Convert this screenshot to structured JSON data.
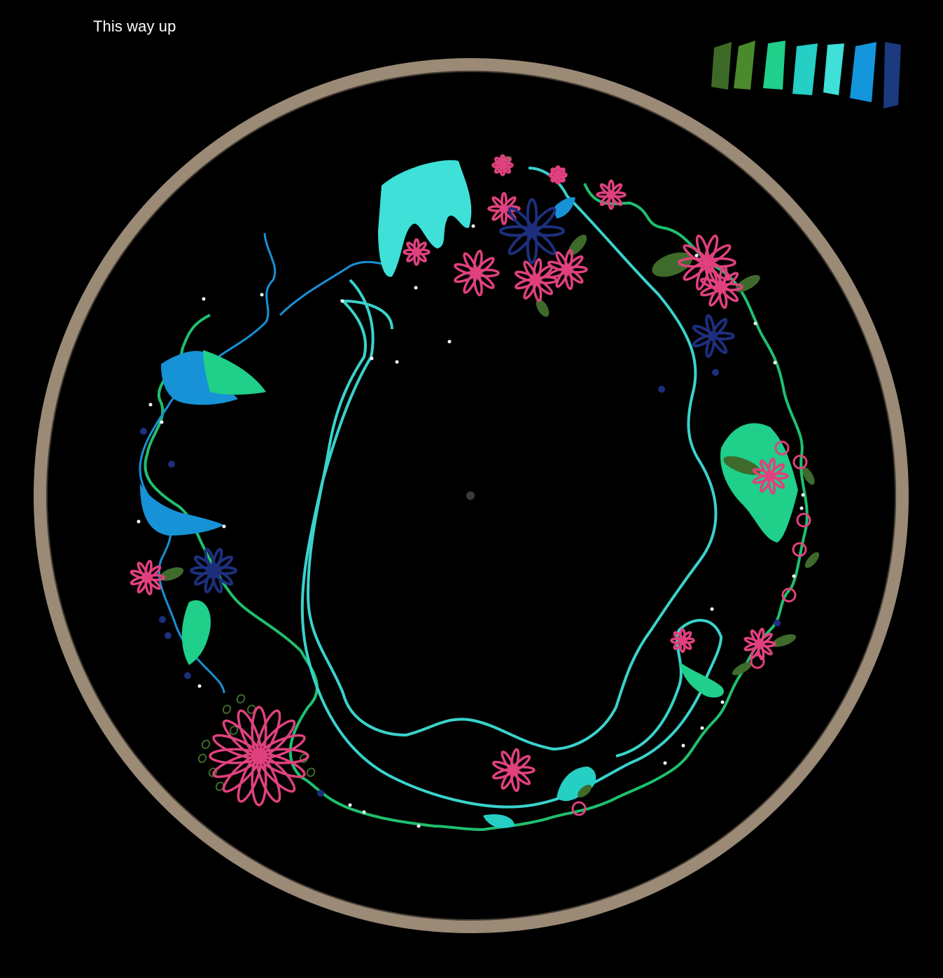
{
  "caption": "This way up",
  "palette": {
    "swatches": [
      {
        "name": "dark-green",
        "color": "#3d6b27"
      },
      {
        "name": "green",
        "color": "#4a8a2c"
      },
      {
        "name": "mint-green",
        "color": "#1fcf8a"
      },
      {
        "name": "aqua",
        "color": "#25cfc4"
      },
      {
        "name": "turquoise",
        "color": "#3ee0d8"
      },
      {
        "name": "sky-blue",
        "color": "#1496dc"
      },
      {
        "name": "navy",
        "color": "#1c3a80"
      }
    ]
  },
  "colors": {
    "background": "#000000",
    "hoop": "#9a8a76",
    "stitch_green": "#1fbf6e",
    "stitch_teal": "#3ad2cc",
    "stitch_blue": "#1792d6",
    "leaf": "#3e6b2b",
    "flower_pink": "#e0417e",
    "flower_navy": "#1d2f7c",
    "center_dot": "#3a3a3a"
  }
}
